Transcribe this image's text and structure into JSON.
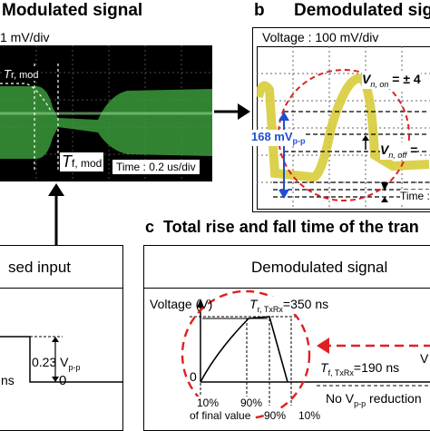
{
  "panel_a": {
    "title": "Modulated signal",
    "scale": "1 mV/div",
    "rise_label": "r, mod",
    "fall_label_main": "T",
    "fall_label_sub": "f, mod",
    "time_scale": "Time : 0.2 us/div"
  },
  "panel_b": {
    "letter": "b",
    "title": "Demodulated sig",
    "voltage_scale": "Voltage : 100 mV/div",
    "vpp_main": "168 mV",
    "vpp_sub": "p-p",
    "von_main": "V",
    "von_sub": "n, on",
    "von_value": "= ± 4",
    "voff_main": "V",
    "voff_sub": "n, off",
    "voff_value": "=",
    "time_scale": "Time :"
  },
  "panel_c": {
    "letter": "c",
    "title": "Total rise and fall time of the tran",
    "box_title": "Demodulated signal",
    "voltage_axis": "Voltage (V)",
    "zero": "0",
    "tr_main": "T",
    "tr_sub": "r, TxRx",
    "tr_value": "=350 ns",
    "tf_main": "T",
    "tf_sub": "f, TxRx",
    "tf_value": "=190 ns",
    "pct10_a": "10%",
    "pct10_b": "of final value",
    "pct90_a": "90%",
    "pct90_b": "90%",
    "pct10_c": "10%",
    "no_vpp": "No V",
    "no_vpp_sub": "p-p",
    "no_vpp_rest": " reduction",
    "right_cut": "V"
  },
  "panel_left": {
    "title": "sed input",
    "amplitude_main": "0.23 V",
    "amplitude_sub": "p-p",
    "ns": "ns",
    "zero": "0"
  },
  "colors": {
    "green_signal": "#3a9a3a",
    "yellow_signal": "#d8cc3a",
    "red_dash": "#e02020",
    "blue_arrow": "#1f4fd0"
  }
}
